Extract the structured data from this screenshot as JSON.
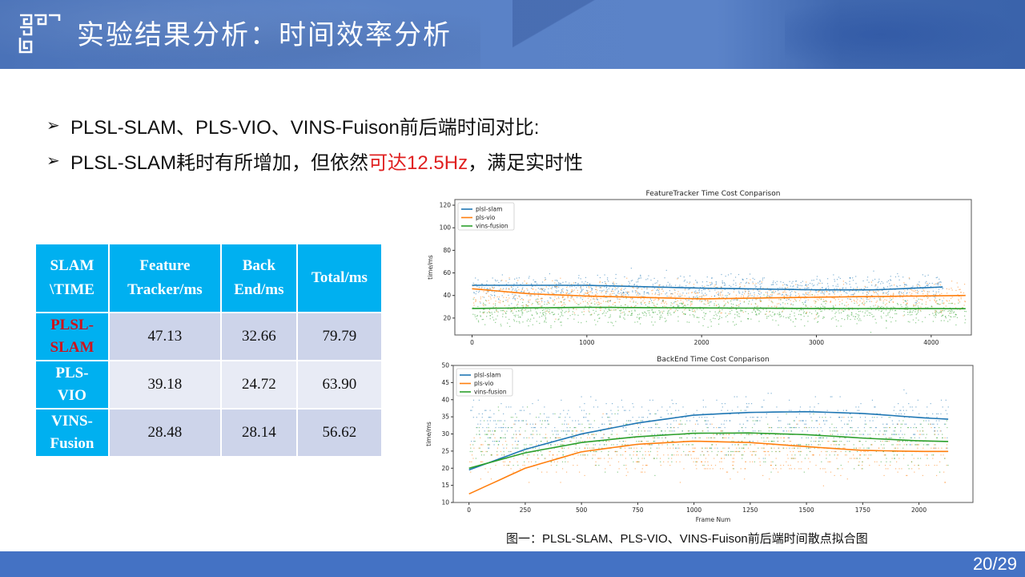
{
  "header": {
    "title": "实验结果分析：时间效率分析",
    "logo_icon": "chinese-fret-pattern-icon"
  },
  "bullets": [
    {
      "icon": "arrow-bullet-icon",
      "arrow": "➢",
      "text": "PLSL-SLAM、PLS-VIO、VINS-Fuison前后端时间对比:"
    },
    {
      "icon": "arrow-bullet-icon",
      "arrow": "➢",
      "text_before": "PLSL-SLAM耗时有所增加，但依然",
      "text_highlight": "可达12.5Hz",
      "text_after": "，满足实时性"
    }
  ],
  "table": {
    "headers": [
      [
        "SLAM",
        "\\TIME"
      ],
      [
        "Feature",
        "Tracker/ms"
      ],
      [
        "Back",
        "End/ms"
      ],
      [
        "Total/ms"
      ]
    ],
    "rows": [
      {
        "name": [
          "PLSL-",
          "SLAM"
        ],
        "feature": "47.13",
        "backend": "32.66",
        "total": "79.79"
      },
      {
        "name": [
          "PLS-",
          "VIO"
        ],
        "feature": "39.18",
        "backend": "24.72",
        "total": "63.90"
      },
      {
        "name": [
          "VINS-",
          "Fusion"
        ],
        "feature": "28.48",
        "backend": "28.14",
        "total": "56.62"
      }
    ]
  },
  "colors": {
    "plsl_slam": "#1f77b4",
    "pls_vio": "#ff7f0e",
    "vins_fusion": "#2ca02c",
    "highlight_red": "#e02020",
    "table_header": "#00b0f0",
    "footer": "#4472c4"
  },
  "chart_data": [
    {
      "type": "scatter",
      "title": "FeatureTracker Time Cost Conparison",
      "xlabel": "",
      "ylabel": "time/ms",
      "xlim": [
        -150,
        4350
      ],
      "ylim": [
        5,
        125
      ],
      "xticks": [
        0,
        1000,
        2000,
        3000,
        4000
      ],
      "yticks": [
        20,
        40,
        60,
        80,
        100,
        120
      ],
      "legend_position": "upper left",
      "grid": false,
      "series": [
        {
          "name": "plsl-slam",
          "color": "#1f77b4",
          "x_range": [
            0,
            4100
          ],
          "scatter_center": 47,
          "scatter_spread": 14,
          "fit_line": {
            "x": [
              0,
              1000,
              2000,
              3000,
              3500,
              4100
            ],
            "y": [
              49,
              49,
              46.5,
              45,
              45,
              47.5
            ]
          }
        },
        {
          "name": "pls-vio",
          "color": "#ff7f0e",
          "x_range": [
            0,
            4300
          ],
          "scatter_center": 39,
          "scatter_spread": 16,
          "fit_line": {
            "x": [
              0,
              500,
              1000,
              2000,
              3000,
              4300
            ],
            "y": [
              46,
              41.5,
              39.5,
              37,
              38.5,
              40
            ]
          }
        },
        {
          "name": "vins-fusion",
          "color": "#2ca02c",
          "x_range": [
            0,
            4300
          ],
          "scatter_center": 26,
          "scatter_spread": 14,
          "fit_line": {
            "x": [
              0,
              1000,
              2000,
              3000,
              4300
            ],
            "y": [
              28.5,
              29.5,
              29,
              28.5,
              28.3
            ]
          }
        }
      ]
    },
    {
      "type": "scatter",
      "title": "BackEnd Time Cost Conparison",
      "xlabel": "Frame Num",
      "ylabel": "time/ms",
      "xlim": [
        -70,
        2240
      ],
      "ylim": [
        10,
        50
      ],
      "xticks": [
        0,
        250,
        500,
        750,
        1000,
        1250,
        1500,
        1750,
        2000
      ],
      "yticks": [
        10,
        15,
        20,
        25,
        30,
        35,
        40,
        45,
        50
      ],
      "legend_position": "upper left",
      "grid": false,
      "series": [
        {
          "name": "plsl-slam",
          "color": "#1f77b4",
          "x_range": [
            0,
            2130
          ],
          "scatter_center": 33,
          "scatter_spread": 9,
          "fit_line": {
            "x": [
              0,
              250,
              500,
              750,
              1000,
              1250,
              1500,
              1750,
              2000,
              2130
            ],
            "y": [
              19.5,
              25.5,
              30,
              33.2,
              35.5,
              36.3,
              36.5,
              36,
              34.8,
              34.3
            ]
          }
        },
        {
          "name": "pls-vio",
          "color": "#ff7f0e",
          "x_range": [
            0,
            2130
          ],
          "scatter_center": 25,
          "scatter_spread": 9,
          "fit_line": {
            "x": [
              0,
              250,
              500,
              750,
              1000,
              1250,
              1500,
              1750,
              2000,
              2130
            ],
            "y": [
              12.5,
              20,
              24.8,
              27,
              27.9,
              27.5,
              26.3,
              25.2,
              24.9,
              24.9
            ]
          }
        },
        {
          "name": "vins-fusion",
          "color": "#2ca02c",
          "x_range": [
            0,
            2130
          ],
          "scatter_center": 28,
          "scatter_spread": 9,
          "fit_line": {
            "x": [
              0,
              250,
              500,
              750,
              1000,
              1250,
              1500,
              1750,
              2000,
              2130
            ],
            "y": [
              20,
              24.5,
              27.5,
              29.2,
              30.2,
              30.3,
              29.8,
              28.8,
              28,
              27.8
            ]
          }
        }
      ]
    }
  ],
  "caption": "图一：PLSL-SLAM、PLS-VIO、VINS-Fuison前后端时间散点拟合图",
  "footer": {
    "page_number": "20/29"
  }
}
